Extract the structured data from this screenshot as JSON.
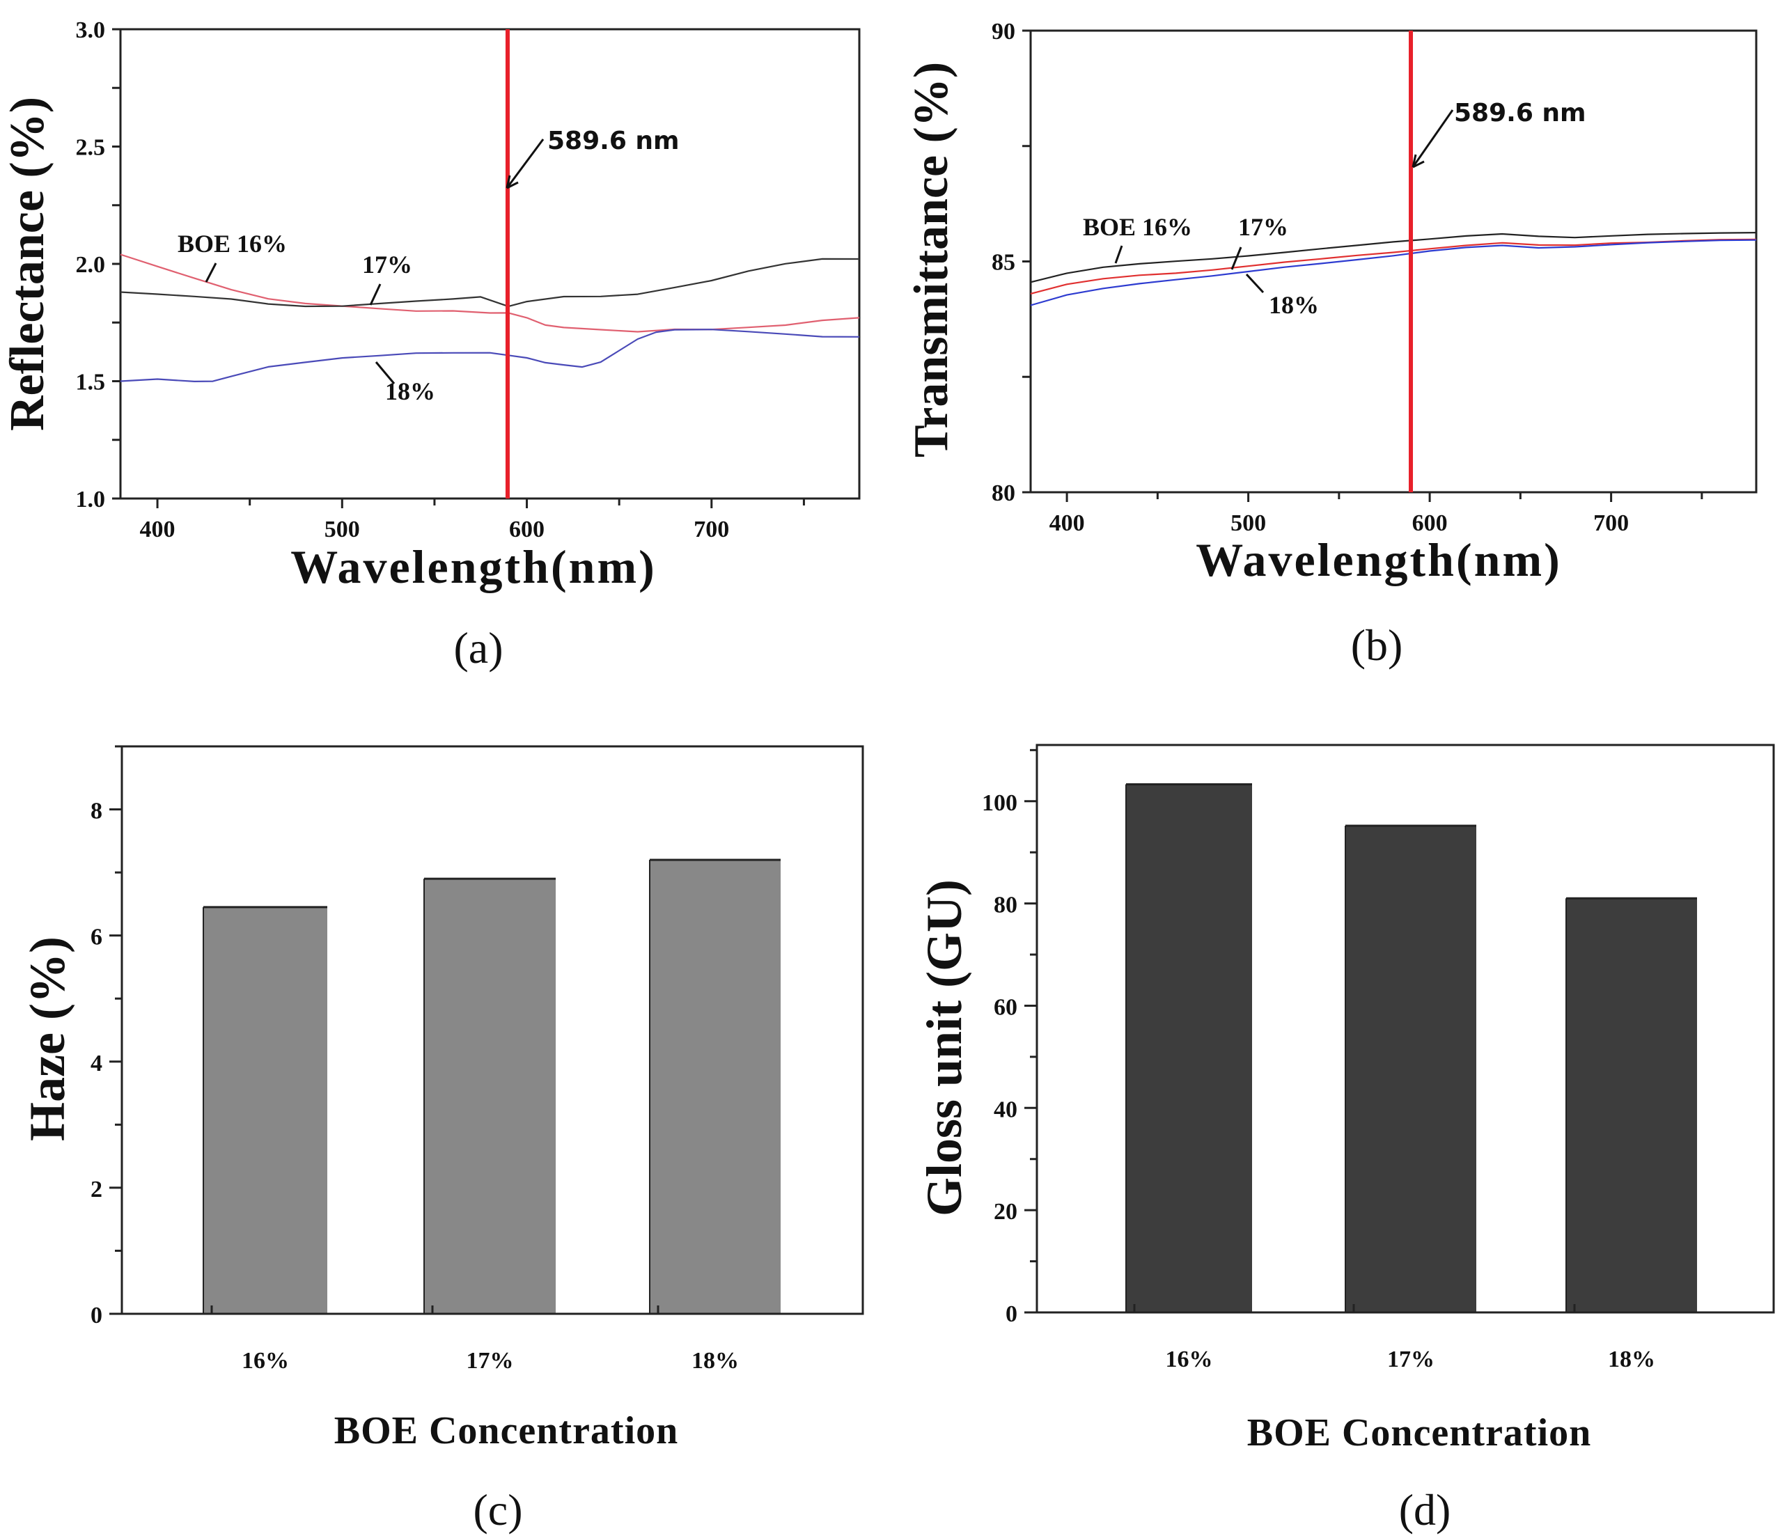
{
  "chart_data": [
    {
      "panel": "a",
      "caption": "(a)",
      "type": "line",
      "title": "",
      "xlabel": "Wavelength(nm)",
      "ylabel": "Reflectance (%)",
      "xlim": [
        380,
        780
      ],
      "ylim": [
        1.0,
        3.0
      ],
      "xticks": [
        400,
        500,
        600,
        700
      ],
      "yticks": [
        1.0,
        1.5,
        2.0,
        2.5,
        3.0
      ],
      "ytick_labels": [
        "1.0",
        "1.5",
        "2.0",
        "2.5",
        "3.0"
      ],
      "grid": false,
      "marker_line": {
        "x": 589.6,
        "label": "589.6 nm",
        "color": "#e8202a"
      },
      "series": [
        {
          "name": "BOE 16%",
          "color": "#e06070",
          "x": [
            380,
            400,
            420,
            440,
            460,
            480,
            500,
            520,
            540,
            560,
            580,
            590,
            600,
            610,
            620,
            640,
            660,
            680,
            700,
            720,
            740,
            760,
            780
          ],
          "y": [
            2.04,
            1.99,
            1.94,
            1.89,
            1.85,
            1.83,
            1.82,
            1.81,
            1.8,
            1.8,
            1.79,
            1.79,
            1.77,
            1.74,
            1.73,
            1.72,
            1.71,
            1.72,
            1.72,
            1.73,
            1.74,
            1.76,
            1.77
          ]
        },
        {
          "name": "17%",
          "color": "#333333",
          "x": [
            380,
            400,
            420,
            440,
            460,
            480,
            500,
            520,
            540,
            560,
            575,
            590,
            600,
            620,
            640,
            660,
            680,
            700,
            720,
            740,
            760,
            780
          ],
          "y": [
            1.88,
            1.87,
            1.86,
            1.85,
            1.83,
            1.82,
            1.82,
            1.83,
            1.84,
            1.85,
            1.86,
            1.82,
            1.84,
            1.86,
            1.86,
            1.87,
            1.9,
            1.93,
            1.97,
            2.0,
            2.02,
            2.02
          ]
        },
        {
          "name": "18%",
          "color": "#4a4ab8",
          "x": [
            380,
            400,
            420,
            430,
            440,
            460,
            480,
            500,
            520,
            540,
            560,
            580,
            590,
            600,
            610,
            620,
            630,
            640,
            650,
            660,
            670,
            680,
            700,
            720,
            740,
            760,
            780
          ],
          "y": [
            1.5,
            1.51,
            1.5,
            1.5,
            1.52,
            1.56,
            1.58,
            1.6,
            1.61,
            1.62,
            1.62,
            1.62,
            1.61,
            1.6,
            1.58,
            1.57,
            1.56,
            1.58,
            1.63,
            1.68,
            1.71,
            1.72,
            1.72,
            1.71,
            1.7,
            1.69,
            1.69
          ]
        }
      ],
      "annotations": [
        {
          "text": "BOE 16%",
          "points_to": "BOE 16%"
        },
        {
          "text": "17%",
          "points_to": "17%"
        },
        {
          "text": "18%",
          "points_to": "18%"
        },
        {
          "text": "589.6 nm",
          "points_to": "marker_line"
        }
      ]
    },
    {
      "panel": "b",
      "caption": "(b)",
      "type": "line",
      "title": "",
      "xlabel": "Wavelength(nm)",
      "ylabel": "Transmittance (%)",
      "xlim": [
        380,
        780
      ],
      "ylim": [
        80,
        90
      ],
      "xticks": [
        400,
        500,
        600,
        700
      ],
      "yticks": [
        80,
        85,
        90
      ],
      "ytick_labels": [
        "80",
        "85",
        "90"
      ],
      "grid": false,
      "marker_line": {
        "x": 589.6,
        "label": "589.6 nm",
        "color": "#e8202a"
      },
      "series": [
        {
          "name": "BOE 16%",
          "color": "#222222",
          "x": [
            380,
            400,
            420,
            440,
            460,
            480,
            500,
            520,
            540,
            560,
            580,
            600,
            620,
            640,
            660,
            680,
            700,
            720,
            740,
            760,
            780
          ],
          "y": [
            84.55,
            84.75,
            84.88,
            84.95,
            85.0,
            85.05,
            85.12,
            85.2,
            85.28,
            85.35,
            85.42,
            85.48,
            85.55,
            85.6,
            85.55,
            85.52,
            85.55,
            85.58,
            85.6,
            85.62,
            85.63
          ]
        },
        {
          "name": "17%",
          "color": "#e03030",
          "x": [
            380,
            400,
            420,
            440,
            460,
            480,
            500,
            520,
            540,
            560,
            580,
            600,
            620,
            640,
            660,
            680,
            700,
            720,
            740,
            760,
            780
          ],
          "y": [
            84.3,
            84.5,
            84.62,
            84.7,
            84.75,
            84.82,
            84.9,
            84.98,
            85.05,
            85.13,
            85.2,
            85.28,
            85.35,
            85.4,
            85.35,
            85.35,
            85.4,
            85.42,
            85.45,
            85.47,
            85.47
          ]
        },
        {
          "name": "18%",
          "color": "#2d3bd0",
          "x": [
            380,
            400,
            420,
            440,
            460,
            480,
            500,
            520,
            540,
            560,
            580,
            600,
            620,
            640,
            660,
            680,
            700,
            720,
            740,
            760,
            780
          ],
          "y": [
            84.05,
            84.28,
            84.42,
            84.52,
            84.6,
            84.68,
            84.78,
            84.88,
            84.96,
            85.04,
            85.12,
            85.22,
            85.3,
            85.35,
            85.3,
            85.32,
            85.36,
            85.4,
            85.43,
            85.46,
            85.47
          ]
        }
      ],
      "annotations": [
        {
          "text": "BOE 16%",
          "points_to": "BOE 16%"
        },
        {
          "text": "17%",
          "points_to": "17%"
        },
        {
          "text": "18%",
          "points_to": "18%"
        },
        {
          "text": "589.6 nm",
          "points_to": "marker_line"
        }
      ]
    },
    {
      "panel": "c",
      "caption": "(c)",
      "type": "bar",
      "title": "",
      "xlabel": "BOE Concentration",
      "ylabel": "Haze (%)",
      "categories": [
        "16%",
        "17%",
        "18%"
      ],
      "values": [
        6.45,
        6.9,
        7.2
      ],
      "ylim": [
        0,
        9
      ],
      "yticks": [
        0,
        2,
        4,
        6,
        8
      ],
      "ytick_labels": [
        "0",
        "2",
        "4",
        "6",
        "8"
      ],
      "bar_color": "#888888",
      "grid": false
    },
    {
      "panel": "d",
      "caption": "(d)",
      "type": "bar",
      "title": "",
      "xlabel": "BOE Concentration",
      "ylabel": "Gloss unit (GU)",
      "categories": [
        "16%",
        "17%",
        "18%"
      ],
      "values": [
        103.3,
        95.2,
        81.0
      ],
      "ylim": [
        0,
        111
      ],
      "yticks": [
        0,
        20,
        40,
        60,
        80,
        100
      ],
      "ytick_labels": [
        "0",
        "20",
        "40",
        "60",
        "80",
        "100"
      ],
      "bar_color": "#3d3d3d",
      "grid": false
    }
  ]
}
